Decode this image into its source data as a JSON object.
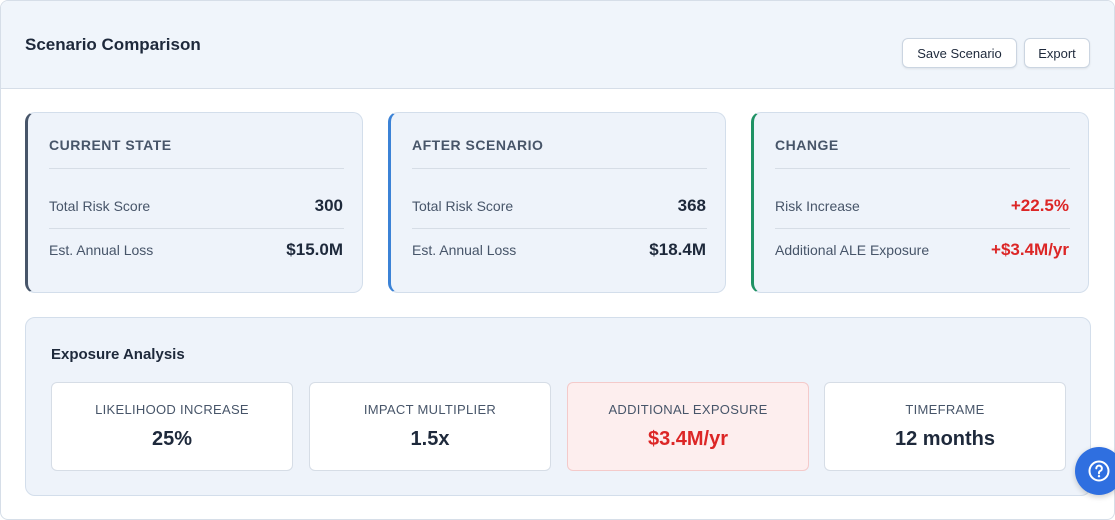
{
  "header": {
    "title": "Scenario Comparison",
    "save_label": "Save Scenario",
    "export_label": "Export"
  },
  "cards": {
    "current": {
      "heading": "CURRENT STATE",
      "row1_label": "Total Risk Score",
      "row1_value": "300",
      "row2_label": "Est. Annual Loss",
      "row2_value": "$15.0M",
      "accent": "#475569"
    },
    "after": {
      "heading": "AFTER SCENARIO",
      "row1_label": "Total Risk Score",
      "row1_value": "368",
      "row2_label": "Est. Annual Loss",
      "row2_value": "$18.4M",
      "accent": "#3b82d6"
    },
    "change": {
      "heading": "CHANGE",
      "row1_label": "Risk Increase",
      "row1_value": "+22.5%",
      "row2_label": "Additional ALE Exposure",
      "row2_value": "+$3.4M/yr",
      "accent": "#1f9264",
      "value_color": "#dc2626"
    }
  },
  "analysis": {
    "title": "Exposure Analysis",
    "metrics": [
      {
        "label": "LIKELIHOOD INCREASE",
        "value": "25%"
      },
      {
        "label": "IMPACT MULTIPLIER",
        "value": "1.5x"
      },
      {
        "label": "ADDITIONAL EXPOSURE",
        "value": "$3.4M/yr",
        "highlight": true
      },
      {
        "label": "TIMEFRAME",
        "value": "12 months"
      }
    ]
  },
  "help": {
    "icon": "help-circle-icon",
    "color": "#2f6fe0"
  }
}
